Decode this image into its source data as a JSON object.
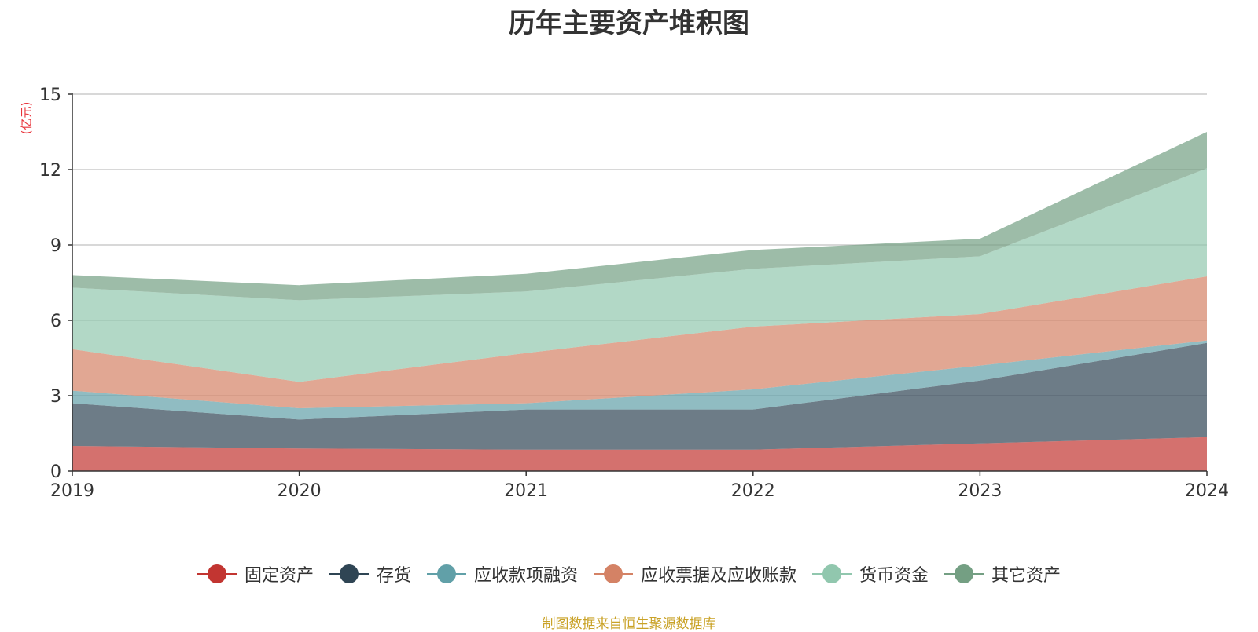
{
  "chart_data": {
    "type": "area",
    "stacked": true,
    "title": "历年主要资产堆积图",
    "ylabel": "(亿元)",
    "xlabel": "",
    "categories": [
      "2019",
      "2020",
      "2021",
      "2022",
      "2023",
      "2024"
    ],
    "ylim": [
      0,
      15
    ],
    "yticks": [
      "0",
      "3",
      "6",
      "9",
      "12",
      "15"
    ],
    "grid": true,
    "legend_position": "bottom",
    "series": [
      {
        "name": "固定资产",
        "color": "#c23531",
        "values": [
          1.0,
          0.9,
          0.85,
          0.85,
          1.1,
          1.35
        ]
      },
      {
        "name": "存货",
        "color": "#2f4554",
        "values": [
          1.7,
          1.15,
          1.6,
          1.6,
          2.5,
          3.75
        ]
      },
      {
        "name": "应收款项融资",
        "color": "#61a0a8",
        "values": [
          0.5,
          0.45,
          0.25,
          0.8,
          0.6,
          0.1
        ]
      },
      {
        "name": "应收票据及应收账款",
        "color": "#d48265",
        "values": [
          1.65,
          1.05,
          2.0,
          2.5,
          2.05,
          2.55
        ]
      },
      {
        "name": "货币资金",
        "color": "#91c7ae",
        "values": [
          2.45,
          3.25,
          2.45,
          2.3,
          2.3,
          4.3
        ]
      },
      {
        "name": "其它资产",
        "color": "#749f83",
        "values": [
          0.5,
          0.6,
          0.7,
          0.75,
          0.7,
          1.45
        ]
      }
    ]
  },
  "footer": "制图数据来自恒生聚源数据库"
}
